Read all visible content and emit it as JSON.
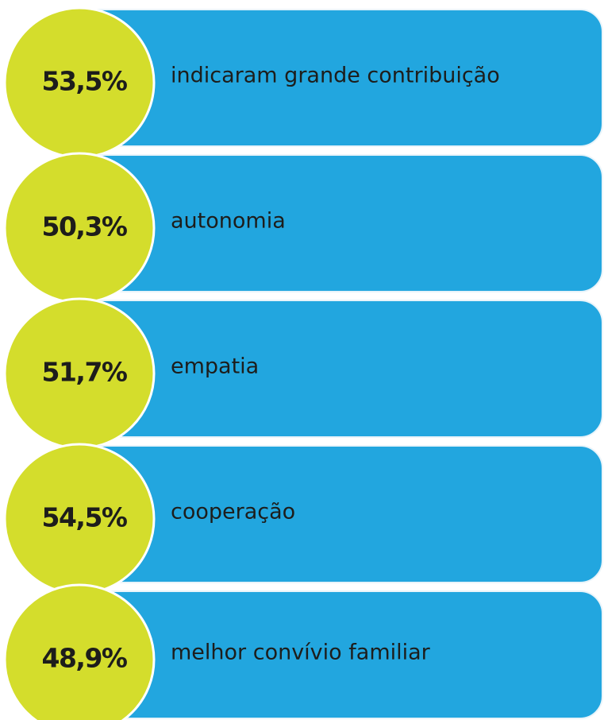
{
  "items": [
    {
      "value": "53,5%",
      "label": "indicaram grande contribuição"
    },
    {
      "value": "50,3%",
      "label": "autonomia"
    },
    {
      "value": "51,7%",
      "label": "empatia"
    },
    {
      "value": "54,5%",
      "label": "cooperação"
    },
    {
      "value": "48,9%",
      "label": "melhor convívio familiar"
    }
  ]
}
